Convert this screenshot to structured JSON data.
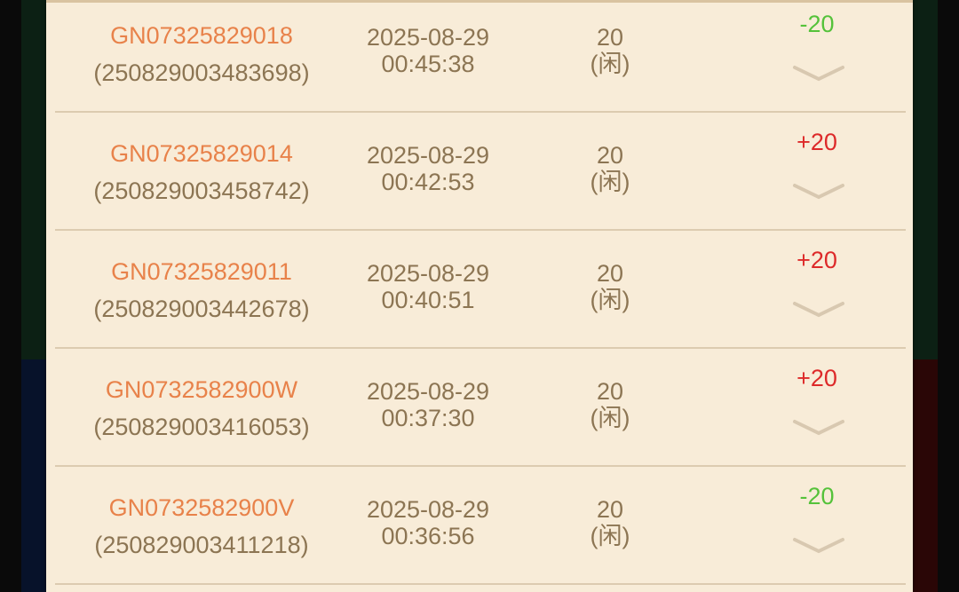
{
  "colors": {
    "plus": "#dd2a2a",
    "minus": "#55c23a",
    "order_id": "#e8824a",
    "text": "#8c7553",
    "panel": "#f8ecd8"
  },
  "records": [
    {
      "order_id": "GN07325829018",
      "serial": "(250829003483698)",
      "date": "2025-08-29",
      "time": "00:45:38",
      "amount": "20",
      "type": "(闲)",
      "result": "-20",
      "result_sign": "minus"
    },
    {
      "order_id": "GN07325829014",
      "serial": "(250829003458742)",
      "date": "2025-08-29",
      "time": "00:42:53",
      "amount": "20",
      "type": "(闲)",
      "result": "+20",
      "result_sign": "plus"
    },
    {
      "order_id": "GN07325829011",
      "serial": "(250829003442678)",
      "date": "2025-08-29",
      "time": "00:40:51",
      "amount": "20",
      "type": "(闲)",
      "result": "+20",
      "result_sign": "plus"
    },
    {
      "order_id": "GN0732582900W",
      "serial": "(250829003416053)",
      "date": "2025-08-29",
      "time": "00:37:30",
      "amount": "20",
      "type": "(闲)",
      "result": "+20",
      "result_sign": "plus"
    },
    {
      "order_id": "GN0732582900V",
      "serial": "(250829003411218)",
      "date": "2025-08-29",
      "time": "00:36:56",
      "amount": "20",
      "type": "(闲)",
      "result": "-20",
      "result_sign": "minus"
    }
  ],
  "expand_icon": "chevron-down-icon"
}
